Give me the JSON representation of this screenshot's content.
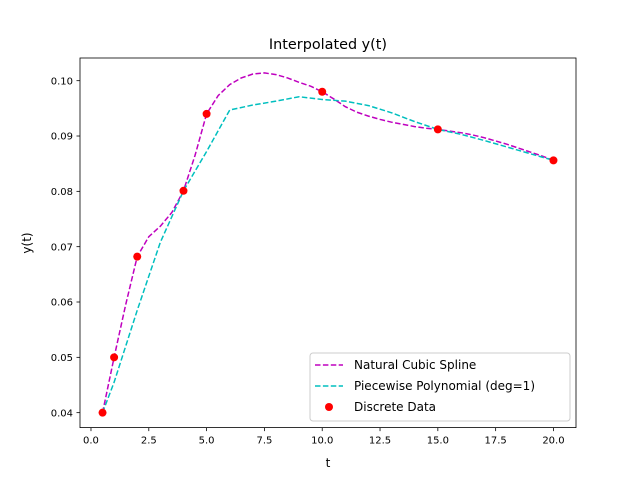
{
  "chart_data": {
    "type": "line",
    "title": "Interpolated y(t)",
    "xlabel": "t",
    "ylabel": "y(t)",
    "xlim": [
      -0.475,
      20.975
    ],
    "ylim": [
      0.0373,
      0.1041
    ],
    "xticks": [
      0.0,
      2.5,
      5.0,
      7.5,
      10.0,
      12.5,
      15.0,
      17.5,
      20.0
    ],
    "xtick_labels": [
      "0.0",
      "2.5",
      "5.0",
      "7.5",
      "10.0",
      "12.5",
      "15.0",
      "17.5",
      "20.0"
    ],
    "yticks": [
      0.04,
      0.05,
      0.06,
      0.07,
      0.08,
      0.09,
      0.1
    ],
    "ytick_labels": [
      "0.04",
      "0.05",
      "0.06",
      "0.07",
      "0.08",
      "0.09",
      "0.10"
    ],
    "grid": false,
    "legend_position": "lower-right",
    "series": [
      {
        "name": "Natural Cubic Spline",
        "style": "dashed",
        "color": "#bf00bf",
        "x": [
          0.5,
          1.0,
          1.5,
          2.0,
          2.5,
          3.0,
          3.5,
          4.0,
          4.5,
          5.0,
          5.5,
          6.0,
          6.5,
          7.0,
          7.5,
          8.0,
          8.5,
          9.0,
          9.5,
          10.0,
          10.5,
          11.0,
          11.5,
          12.0,
          12.5,
          13.0,
          13.5,
          14.0,
          14.5,
          15.0,
          15.5,
          16.0,
          16.5,
          17.0,
          17.5,
          18.0,
          18.5,
          19.0,
          19.5,
          20.0
        ],
        "y": [
          0.04,
          0.05,
          0.0595,
          0.0682,
          0.0718,
          0.0737,
          0.0762,
          0.0801,
          0.0865,
          0.094,
          0.0973,
          0.0993,
          0.1005,
          0.1012,
          0.1014,
          0.1011,
          0.1005,
          0.0997,
          0.099,
          0.098,
          0.0967,
          0.0953,
          0.0943,
          0.0936,
          0.093,
          0.0925,
          0.0921,
          0.0917,
          0.0914,
          0.0912,
          0.0909,
          0.0906,
          0.0902,
          0.0897,
          0.0891,
          0.0885,
          0.0878,
          0.0871,
          0.0864,
          0.0856
        ]
      },
      {
        "name": "Piecewise Polynomial (deg=1)",
        "style": "dashed",
        "color": "#00bfbf",
        "x": [
          0.5,
          1.0,
          2.0,
          3.0,
          4.0,
          5.0,
          6.0,
          7.0,
          8.0,
          9.0,
          10.0,
          11.0,
          12.0,
          13.0,
          14.0,
          15.0,
          16.0,
          17.0,
          18.0,
          19.0,
          20.0
        ],
        "y": [
          0.04,
          0.0455,
          0.0585,
          0.0708,
          0.0801,
          0.0872,
          0.0947,
          0.0956,
          0.0963,
          0.0971,
          0.0966,
          0.0963,
          0.0955,
          0.0942,
          0.0926,
          0.0912,
          0.0903,
          0.0892,
          0.088,
          0.0868,
          0.0856
        ]
      },
      {
        "name": "Discrete Data",
        "style": "markers",
        "color": "#ff0000",
        "x": [
          0.5,
          1.0,
          2.0,
          4.0,
          5.0,
          10.0,
          15.0,
          20.0
        ],
        "y": [
          0.04,
          0.05,
          0.0682,
          0.0801,
          0.094,
          0.098,
          0.0912,
          0.0856
        ]
      }
    ]
  }
}
